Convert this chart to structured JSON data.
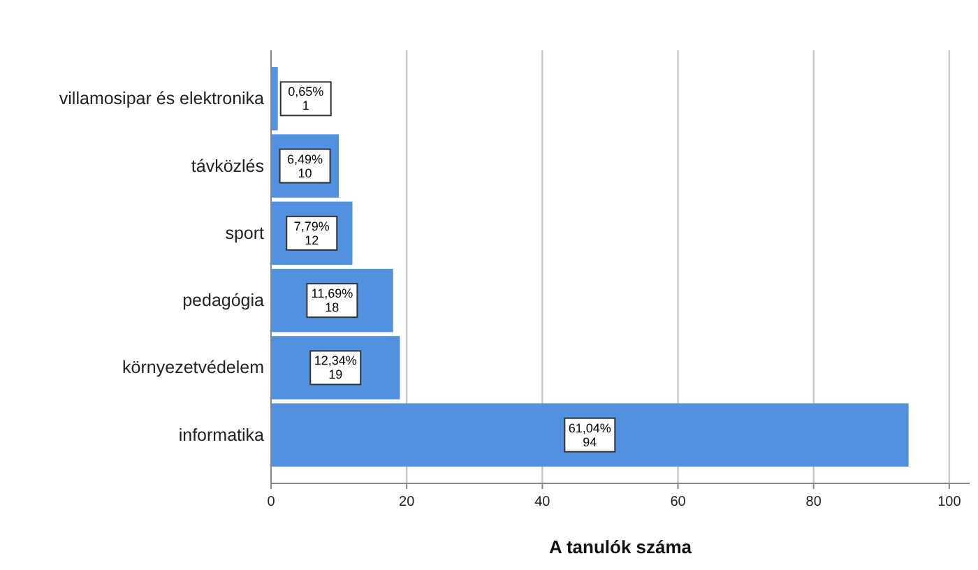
{
  "chart_data": {
    "type": "bar",
    "orientation": "horizontal",
    "xlabel": "A tanulók száma",
    "categories": [
      "villamosipar és elektronika",
      "távközlés",
      "sport",
      "pedagógia",
      "környezetvédelem",
      "informatika"
    ],
    "values": [
      1,
      10,
      12,
      18,
      19,
      94
    ],
    "color": "#5191e0",
    "value_labels": [
      "0,65%\n1",
      "6,49%\n10",
      "7,79%\n12",
      "11,69%\n18",
      "12,34%\n19",
      "61,04%\n94"
    ],
    "xlim": [
      0,
      103
    ],
    "xticks": [
      0,
      20,
      40,
      60,
      80,
      100
    ],
    "grid": "x"
  }
}
